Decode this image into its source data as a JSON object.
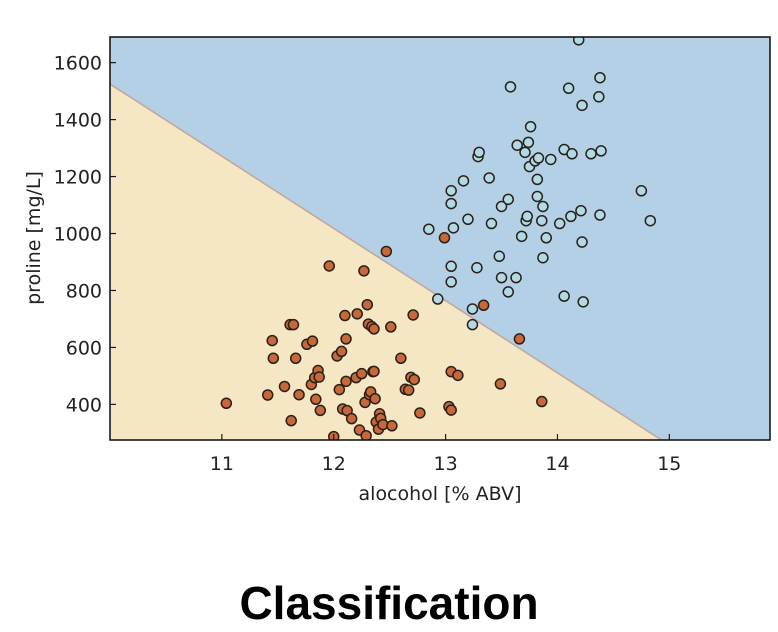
{
  "caption": "Classification",
  "chart_data": {
    "type": "scatter",
    "title": "",
    "xlabel": "alocohol [% ABV]",
    "ylabel": "proline [mg/L]",
    "xlim": [
      10.0,
      15.9
    ],
    "ylim": [
      275,
      1690
    ],
    "xticks": [
      11,
      12,
      13,
      14,
      15
    ],
    "yticks": [
      400,
      600,
      800,
      1000,
      1200,
      1400,
      1600
    ],
    "grid": false,
    "colors": {
      "region_class_0": "#f5e6c4",
      "region_class_1": "#b4d0e6",
      "boundary": "#c4a79a",
      "class_0_point": "#c6683a",
      "class_1_point": "#b2d9e6",
      "point_edge": "#2a2018",
      "frame": "#1a1a1a"
    },
    "decision_boundary": {
      "points": [
        [
          10.0,
          1525
        ],
        [
          14.93,
          275
        ]
      ]
    },
    "series": [
      {
        "class": 0,
        "points": [
          [
            11.04,
            404
          ],
          [
            11.41,
            433
          ],
          [
            11.45,
            624
          ],
          [
            11.46,
            562
          ],
          [
            11.56,
            463
          ],
          [
            11.61,
            680
          ],
          [
            11.64,
            680
          ],
          [
            11.62,
            343
          ],
          [
            11.66,
            562
          ],
          [
            11.69,
            434
          ],
          [
            11.76,
            611
          ],
          [
            11.8,
            470
          ],
          [
            11.81,
            622
          ],
          [
            11.83,
            494
          ],
          [
            11.84,
            418
          ],
          [
            11.86,
            519
          ],
          [
            11.87,
            496
          ],
          [
            11.88,
            379
          ],
          [
            11.96,
            886
          ],
          [
            12.0,
            287
          ],
          [
            12.03,
            570
          ],
          [
            12.05,
            452
          ],
          [
            12.07,
            586
          ],
          [
            12.08,
            384
          ],
          [
            12.1,
            712
          ],
          [
            12.11,
            630
          ],
          [
            12.11,
            481
          ],
          [
            12.12,
            378
          ],
          [
            12.16,
            350
          ],
          [
            12.2,
            494
          ],
          [
            12.21,
            718
          ],
          [
            12.23,
            310
          ],
          [
            12.25,
            508
          ],
          [
            12.27,
            869
          ],
          [
            12.28,
            407
          ],
          [
            12.29,
            290
          ],
          [
            12.3,
            750
          ],
          [
            12.31,
            682
          ],
          [
            12.32,
            434
          ],
          [
            12.33,
            444
          ],
          [
            12.34,
            673
          ],
          [
            12.35,
            515
          ],
          [
            12.36,
            516
          ],
          [
            12.36,
            665
          ],
          [
            12.37,
            420
          ],
          [
            12.38,
            338
          ],
          [
            12.4,
            313
          ],
          [
            12.41,
            367
          ],
          [
            12.42,
            351
          ],
          [
            12.44,
            329
          ],
          [
            12.47,
            937
          ],
          [
            12.51,
            672
          ],
          [
            12.52,
            325
          ],
          [
            12.6,
            562
          ],
          [
            12.64,
            453
          ],
          [
            12.67,
            450
          ],
          [
            12.69,
            495
          ],
          [
            12.71,
            714
          ],
          [
            12.72,
            487
          ],
          [
            12.77,
            370
          ],
          [
            12.99,
            985
          ],
          [
            13.03,
            392
          ],
          [
            13.05,
            515
          ],
          [
            13.05,
            380
          ],
          [
            13.11,
            502
          ],
          [
            13.34,
            748
          ],
          [
            13.49,
            472
          ],
          [
            13.66,
            630
          ],
          [
            13.86,
            410
          ]
        ]
      },
      {
        "class": 1,
        "points": [
          [
            12.85,
            1015
          ],
          [
            12.93,
            770
          ],
          [
            13.05,
            1150
          ],
          [
            13.05,
            1105
          ],
          [
            13.05,
            885
          ],
          [
            13.05,
            830
          ],
          [
            13.07,
            1020
          ],
          [
            13.16,
            1185
          ],
          [
            13.2,
            1050
          ],
          [
            13.24,
            680
          ],
          [
            13.24,
            735
          ],
          [
            13.28,
            880
          ],
          [
            13.29,
            1270
          ],
          [
            13.3,
            1285
          ],
          [
            13.39,
            1195
          ],
          [
            13.41,
            1035
          ],
          [
            13.48,
            920
          ],
          [
            13.5,
            845
          ],
          [
            13.5,
            1095
          ],
          [
            13.56,
            1120
          ],
          [
            13.56,
            795
          ],
          [
            13.58,
            1515
          ],
          [
            13.63,
            845
          ],
          [
            13.64,
            1310
          ],
          [
            13.68,
            990
          ],
          [
            13.71,
            1285
          ],
          [
            13.72,
            1045
          ],
          [
            13.73,
            1060
          ],
          [
            13.74,
            1320
          ],
          [
            13.75,
            1235
          ],
          [
            13.76,
            1375
          ],
          [
            13.8,
            1255
          ],
          [
            13.82,
            1190
          ],
          [
            13.82,
            1130
          ],
          [
            13.83,
            1265
          ],
          [
            13.86,
            1045
          ],
          [
            13.87,
            1095
          ],
          [
            13.87,
            915
          ],
          [
            13.9,
            985
          ],
          [
            13.94,
            1260
          ],
          [
            14.02,
            1035
          ],
          [
            14.06,
            780
          ],
          [
            14.06,
            1295
          ],
          [
            14.1,
            1510
          ],
          [
            14.12,
            1060
          ],
          [
            14.13,
            1280
          ],
          [
            14.19,
            1680
          ],
          [
            14.21,
            1080
          ],
          [
            14.22,
            1450
          ],
          [
            14.22,
            970
          ],
          [
            14.23,
            760
          ],
          [
            14.3,
            1280
          ],
          [
            14.37,
            1480
          ],
          [
            14.38,
            1065
          ],
          [
            14.38,
            1547
          ],
          [
            14.39,
            1290
          ],
          [
            14.75,
            1150
          ],
          [
            14.83,
            1045
          ]
        ]
      }
    ]
  }
}
